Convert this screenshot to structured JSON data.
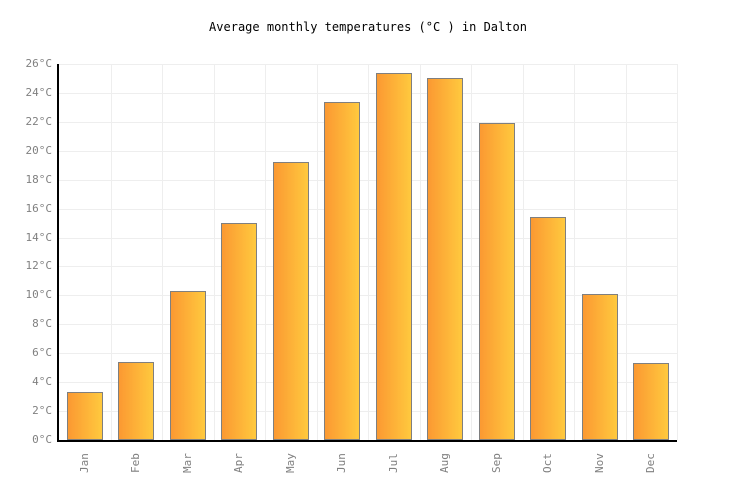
{
  "title": "Average monthly temperatures (°C ) in Dalton",
  "chart_data": {
    "type": "bar",
    "title": "Average monthly temperatures (°C ) in Dalton",
    "categories": [
      "Jan",
      "Feb",
      "Mar",
      "Apr",
      "May",
      "Jun",
      "Jul",
      "Aug",
      "Sep",
      "Oct",
      "Nov",
      "Dec"
    ],
    "values": [
      3.3,
      5.4,
      10.3,
      15.0,
      19.2,
      23.4,
      25.4,
      25.0,
      21.9,
      15.4,
      10.1,
      5.3
    ],
    "xlabel": "",
    "ylabel": "",
    "ylim": [
      0,
      26
    ],
    "ytick_step": 2,
    "ytick_suffix": "°C",
    "grid": true,
    "legend": false,
    "colors": {
      "bar_gradient_left": "#fb9932",
      "bar_gradient_right": "#ffc93e",
      "bar_border": "#7f7f7f",
      "axis": "#000000",
      "gridline": "#eeeeee",
      "tick_label": "#808080",
      "title_text": "#000000",
      "background": "#ffffff"
    }
  }
}
